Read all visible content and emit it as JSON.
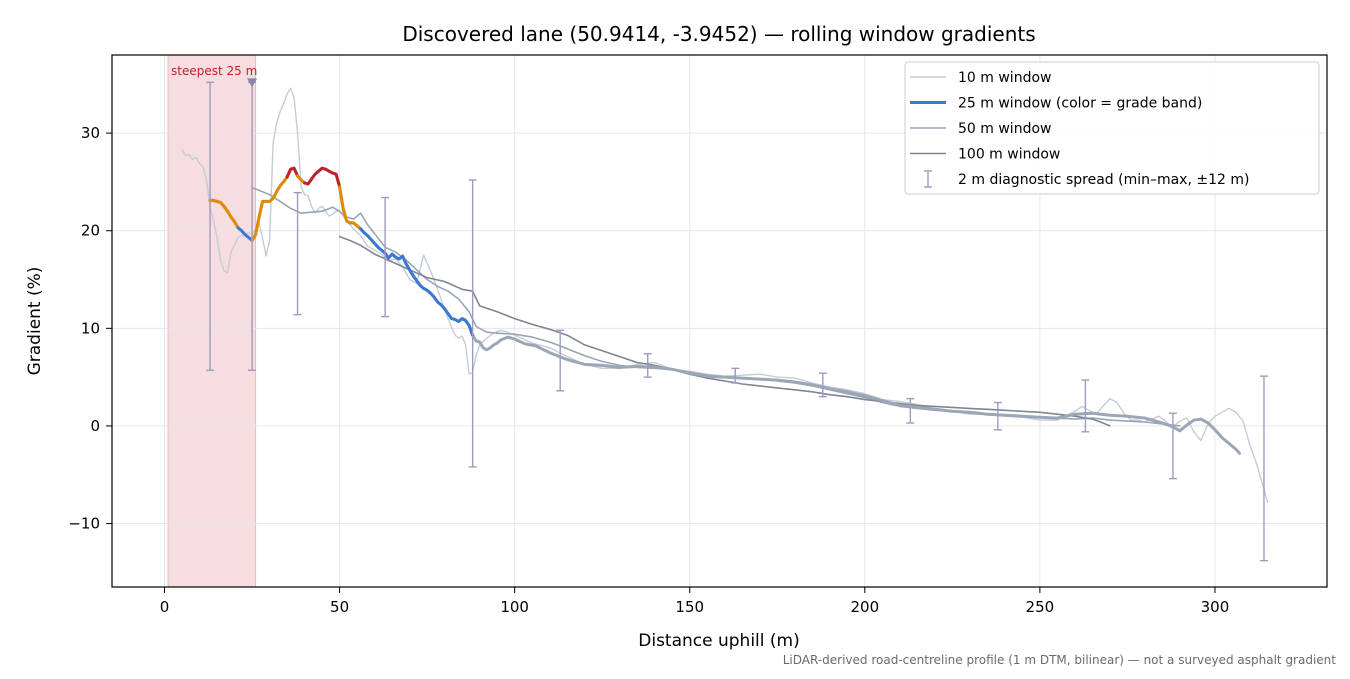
{
  "chart_data": {
    "type": "line",
    "title": "Discovered lane (50.9414, -3.9452) — rolling window gradients",
    "xlabel": "Distance uphill (m)",
    "ylabel": "Gradient (%)",
    "xlim": [
      -15,
      332
    ],
    "ylim": [
      -16.5,
      38
    ],
    "x_ticks": [
      0,
      50,
      100,
      150,
      200,
      250,
      300
    ],
    "y_ticks": [
      -10,
      0,
      10,
      20,
      30
    ],
    "y_tick_labels": [
      "−10",
      "0",
      "10",
      "20",
      "30"
    ],
    "grid": true,
    "legend_position": "top-right",
    "footnote": "LiDAR-derived road-centreline profile (1 m DTM, bilinear) — not a surveyed asphalt gradient",
    "highlight_band": {
      "x0": 1,
      "x1": 26,
      "label": "steepest 25 m",
      "color": "#f5dde0"
    },
    "colors": {
      "w10": "#c6ccd6",
      "w25_default": "#9aa7b6",
      "w50": "#9aa5b3",
      "w100": "#7d8694",
      "errorbar": "#a09ac0",
      "band_steep": "#c0202a",
      "band_hard": "#e08a00",
      "band_moderate": "#3a78d4"
    },
    "legend": [
      {
        "label": "10 m window",
        "color": "#c6ccd6",
        "width": 1.4,
        "kind": "line"
      },
      {
        "label": "25 m window (color = grade band)",
        "color": "#3a78d4",
        "width": 3,
        "kind": "line"
      },
      {
        "label": "50 m window",
        "color": "#9aa5b3",
        "width": 1.6,
        "kind": "line"
      },
      {
        "label": "100 m window",
        "color": "#7d8694",
        "width": 1.6,
        "kind": "line"
      },
      {
        "label": "2 m diagnostic spread (min–max, ±12 m)",
        "color": "#a09ac0",
        "width": 1.4,
        "kind": "errorbar"
      }
    ],
    "series": [
      {
        "name": "10 m window",
        "x": [
          5,
          6,
          7,
          8,
          9,
          10,
          11,
          12,
          13,
          14,
          15,
          16,
          17,
          18,
          19,
          20,
          21,
          22,
          23,
          24,
          25,
          26,
          27,
          28,
          29,
          30,
          31,
          32,
          33,
          34,
          35,
          36,
          37,
          38,
          39,
          40,
          41,
          42,
          43,
          44,
          45,
          46,
          47,
          48,
          49,
          50,
          52,
          54,
          56,
          58,
          60,
          62,
          64,
          66,
          68,
          70,
          72,
          74,
          76,
          78,
          80,
          81,
          82,
          83,
          84,
          85,
          86,
          87,
          88,
          89,
          90,
          92,
          94,
          96,
          98,
          100,
          105,
          110,
          115,
          120,
          125,
          130,
          135,
          140,
          145,
          150,
          155,
          160,
          165,
          170,
          175,
          180,
          185,
          190,
          195,
          200,
          205,
          210,
          215,
          220,
          225,
          230,
          235,
          240,
          245,
          250,
          255,
          260,
          262,
          264,
          266,
          268,
          270,
          272,
          274,
          276,
          278,
          280,
          284,
          288,
          290,
          292,
          294,
          296,
          298,
          300,
          302,
          304,
          306,
          308,
          310,
          312,
          314,
          315
        ],
        "y": [
          28.3,
          27.7,
          27.8,
          27.3,
          27.5,
          26.9,
          26.5,
          25.2,
          22.4,
          21.1,
          19.3,
          17.0,
          15.9,
          15.7,
          17.8,
          18.6,
          19.3,
          19.5,
          19.6,
          19.8,
          19.6,
          20.2,
          20.8,
          19.2,
          17.4,
          19.0,
          29.0,
          31.0,
          32.2,
          33.0,
          34.0,
          34.6,
          33.6,
          30.0,
          24.5,
          23.7,
          23.6,
          22.5,
          21.8,
          22.3,
          22.5,
          22.0,
          21.5,
          21.7,
          22.0,
          22.0,
          21.0,
          20.2,
          19.5,
          18.4,
          18.0,
          17.6,
          16.9,
          17.1,
          16.3,
          15.0,
          14.6,
          17.5,
          15.9,
          14.0,
          11.9,
          11.0,
          10.1,
          9.3,
          9.0,
          9.2,
          8.3,
          5.3,
          5.5,
          7.2,
          8.3,
          9.0,
          9.5,
          9.8,
          9.6,
          9.3,
          8.5,
          8.0,
          7.1,
          6.3,
          5.9,
          5.9,
          6.3,
          6.5,
          5.8,
          5.6,
          5.3,
          5.1,
          5.2,
          5.3,
          5.0,
          4.9,
          4.4,
          4.0,
          3.7,
          3.3,
          2.7,
          2.5,
          2.2,
          1.8,
          1.5,
          1.2,
          1.2,
          1.0,
          0.9,
          0.6,
          0.6,
          1.5,
          2.0,
          1.6,
          1.2,
          2.0,
          2.8,
          2.4,
          1.3,
          0.6,
          0.6,
          0.4,
          1.0,
          -0.1,
          0.5,
          0.8,
          -0.6,
          -1.5,
          0.2,
          1.0,
          1.4,
          1.8,
          1.4,
          0.5,
          -2.0,
          -4.0,
          -6.5,
          -7.8
        ],
        "color": "#c6ccd6",
        "width": 1.4
      },
      {
        "name": "25 m window (color = grade band)",
        "x": [
          13,
          14,
          15,
          16,
          17,
          18,
          19,
          20,
          21,
          22,
          23,
          24,
          25,
          26,
          27,
          28,
          29,
          30,
          31,
          32,
          33,
          34,
          35,
          36,
          37,
          38,
          39,
          40,
          41,
          42,
          43,
          44,
          45,
          46,
          47,
          48,
          49,
          50,
          51,
          52,
          53,
          54,
          55,
          56,
          57,
          58,
          59,
          60,
          61,
          62,
          63,
          64,
          65,
          66,
          67,
          68,
          69,
          70,
          71,
          72,
          73,
          74,
          75,
          76,
          77,
          78,
          79,
          80,
          81,
          82,
          83,
          84,
          85,
          86,
          87,
          88,
          89,
          90,
          91,
          92,
          93,
          94,
          95,
          96,
          98,
          100,
          103,
          106,
          110,
          115,
          120,
          125,
          130,
          135,
          140,
          145,
          150,
          155,
          160,
          165,
          170,
          175,
          180,
          185,
          190,
          195,
          200,
          205,
          210,
          215,
          220,
          225,
          230,
          235,
          240,
          245,
          250,
          255,
          260,
          265,
          270,
          275,
          280,
          285,
          288,
          290,
          292,
          294,
          296,
          298,
          300,
          302,
          304,
          306,
          307
        ],
        "y": [
          23.1,
          23.1,
          23.0,
          22.9,
          22.5,
          22.0,
          21.4,
          20.9,
          20.3,
          20.0,
          19.6,
          19.3,
          19.0,
          19.6,
          21.4,
          23.0,
          23.0,
          23.0,
          23.3,
          24.0,
          24.6,
          25.0,
          25.5,
          26.3,
          26.4,
          25.6,
          25.2,
          24.9,
          24.8,
          25.3,
          25.8,
          26.1,
          26.4,
          26.3,
          26.1,
          25.9,
          25.8,
          24.5,
          22.3,
          21.0,
          20.8,
          20.8,
          20.5,
          20.2,
          19.8,
          19.5,
          19.1,
          18.7,
          18.3,
          18.0,
          17.7,
          17.2,
          17.6,
          17.3,
          17.1,
          17.4,
          16.6,
          16.0,
          15.4,
          14.9,
          14.4,
          14.1,
          13.9,
          13.6,
          13.2,
          12.7,
          12.4,
          12.0,
          11.5,
          11.0,
          10.9,
          10.7,
          11.0,
          10.8,
          10.3,
          9.3,
          8.7,
          8.6,
          8.0,
          7.8,
          8.0,
          8.3,
          8.5,
          8.8,
          9.1,
          8.9,
          8.4,
          8.2,
          7.5,
          6.8,
          6.3,
          6.2,
          6.0,
          6.1,
          6.0,
          5.8,
          5.4,
          5.1,
          5.0,
          4.9,
          4.8,
          4.7,
          4.5,
          4.2,
          3.8,
          3.5,
          3.1,
          2.6,
          2.1,
          1.9,
          1.7,
          1.5,
          1.4,
          1.2,
          1.1,
          1.0,
          0.9,
          0.8,
          1.2,
          1.3,
          1.1,
          1.0,
          0.8,
          0.3,
          -0.1,
          -0.5,
          0.1,
          0.6,
          0.7,
          0.3,
          -0.4,
          -1.2,
          -1.8,
          -2.4,
          -2.8
        ],
        "color": "#9aa7b6",
        "width": 3,
        "bands": [
          {
            "label": "hard",
            "x_range": [
              13,
              21
            ],
            "color": "#e08a00"
          },
          {
            "label": "moderate",
            "x_range": [
              21,
              25
            ],
            "color": "#3a78d4"
          },
          {
            "label": "hard",
            "x_range": [
              25,
              35
            ],
            "color": "#e08a00"
          },
          {
            "label": "steep",
            "x_range": [
              35,
              38
            ],
            "color": "#c0202a"
          },
          {
            "label": "hard",
            "x_range": [
              38,
              40
            ],
            "color": "#e08a00"
          },
          {
            "label": "steep",
            "x_range": [
              40,
              50
            ],
            "color": "#c0202a"
          },
          {
            "label": "hard",
            "x_range": [
              50,
              56
            ],
            "color": "#e08a00"
          },
          {
            "label": "moderate",
            "x_range": [
              56,
              88
            ],
            "color": "#3a78d4"
          }
        ]
      },
      {
        "name": "50 m window",
        "x": [
          25,
          28,
          30,
          33,
          36,
          39,
          42,
          45,
          48,
          50,
          52,
          54,
          56,
          58,
          60,
          63,
          66,
          69,
          72,
          75,
          78,
          81,
          84,
          87,
          89,
          92,
          95,
          100,
          105,
          110,
          115,
          120,
          125,
          130,
          135,
          140,
          145,
          150,
          155,
          160,
          165,
          170,
          175,
          180,
          185,
          190,
          195,
          200,
          205,
          210,
          215,
          220,
          225,
          230,
          235,
          240,
          245,
          250,
          255,
          260,
          265,
          270,
          275,
          280,
          285,
          290
        ],
        "y": [
          24.4,
          24.0,
          23.7,
          23.0,
          22.3,
          21.8,
          21.9,
          22.0,
          22.4,
          22.0,
          21.4,
          21.2,
          21.8,
          20.6,
          19.7,
          18.3,
          17.8,
          17.0,
          16.0,
          15.0,
          14.3,
          13.8,
          13.0,
          11.7,
          10.2,
          9.6,
          9.5,
          9.4,
          9.1,
          8.6,
          7.9,
          7.2,
          6.6,
          6.2,
          6.0,
          5.9,
          5.8,
          5.5,
          5.2,
          5.0,
          4.9,
          4.8,
          4.6,
          4.4,
          4.1,
          3.7,
          3.3,
          2.9,
          2.4,
          2.0,
          1.8,
          1.6,
          1.5,
          1.3,
          1.2,
          1.1,
          1.0,
          0.9,
          0.8,
          0.7,
          0.8,
          0.6,
          0.5,
          0.4,
          0.2,
          0.0
        ],
        "color": "#9aa5b3",
        "width": 1.6
      },
      {
        "name": "100 m window",
        "x": [
          50,
          53,
          56,
          60,
          65,
          70,
          75,
          80,
          85,
          88,
          90,
          95,
          100,
          105,
          110,
          115,
          120,
          125,
          130,
          135,
          140,
          145,
          150,
          155,
          160,
          165,
          170,
          175,
          180,
          185,
          190,
          195,
          200,
          205,
          210,
          215,
          220,
          225,
          230,
          235,
          240,
          245,
          250,
          255,
          260,
          265,
          268,
          270
        ],
        "y": [
          19.4,
          19.0,
          18.5,
          17.6,
          16.8,
          16.0,
          15.2,
          14.8,
          14.0,
          13.8,
          12.3,
          11.7,
          11.0,
          10.4,
          9.9,
          9.3,
          8.3,
          7.7,
          7.1,
          6.5,
          6.2,
          5.8,
          5.3,
          4.9,
          4.6,
          4.3,
          4.1,
          3.9,
          3.7,
          3.5,
          3.2,
          3.0,
          2.7,
          2.5,
          2.3,
          2.1,
          2.0,
          1.9,
          1.8,
          1.7,
          1.6,
          1.5,
          1.4,
          1.2,
          1.0,
          0.7,
          0.3,
          0.0
        ],
        "color": "#7d8694",
        "width": 1.6
      }
    ],
    "error_bars": {
      "name": "2 m diagnostic spread (min–max, ±12 m)",
      "color": "#a09ac0",
      "points": [
        {
          "x": 13,
          "ymin": 5.7,
          "ymax": 35.2
        },
        {
          "x": 25,
          "ymin": 5.7,
          "ymax": 35.2
        },
        {
          "x": 38,
          "ymin": 11.4,
          "ymax": 23.9
        },
        {
          "x": 63,
          "ymin": 11.2,
          "ymax": 23.4
        },
        {
          "x": 88,
          "ymin": -4.2,
          "ymax": 25.2
        },
        {
          "x": 113,
          "ymin": 3.6,
          "ymax": 9.8
        },
        {
          "x": 138,
          "ymin": 5.0,
          "ymax": 7.4
        },
        {
          "x": 163,
          "ymin": 4.4,
          "ymax": 5.9
        },
        {
          "x": 188,
          "ymin": 3.0,
          "ymax": 5.4
        },
        {
          "x": 213,
          "ymin": 0.3,
          "ymax": 2.8
        },
        {
          "x": 238,
          "ymin": -0.4,
          "ymax": 2.4
        },
        {
          "x": 263,
          "ymin": -0.6,
          "ymax": 4.7
        },
        {
          "x": 288,
          "ymin": -5.4,
          "ymax": 1.3
        },
        {
          "x": 314,
          "ymin": -13.8,
          "ymax": 5.1
        }
      ]
    },
    "marker": {
      "x": 25,
      "y": 35.2,
      "color": "#8a86aa"
    }
  }
}
